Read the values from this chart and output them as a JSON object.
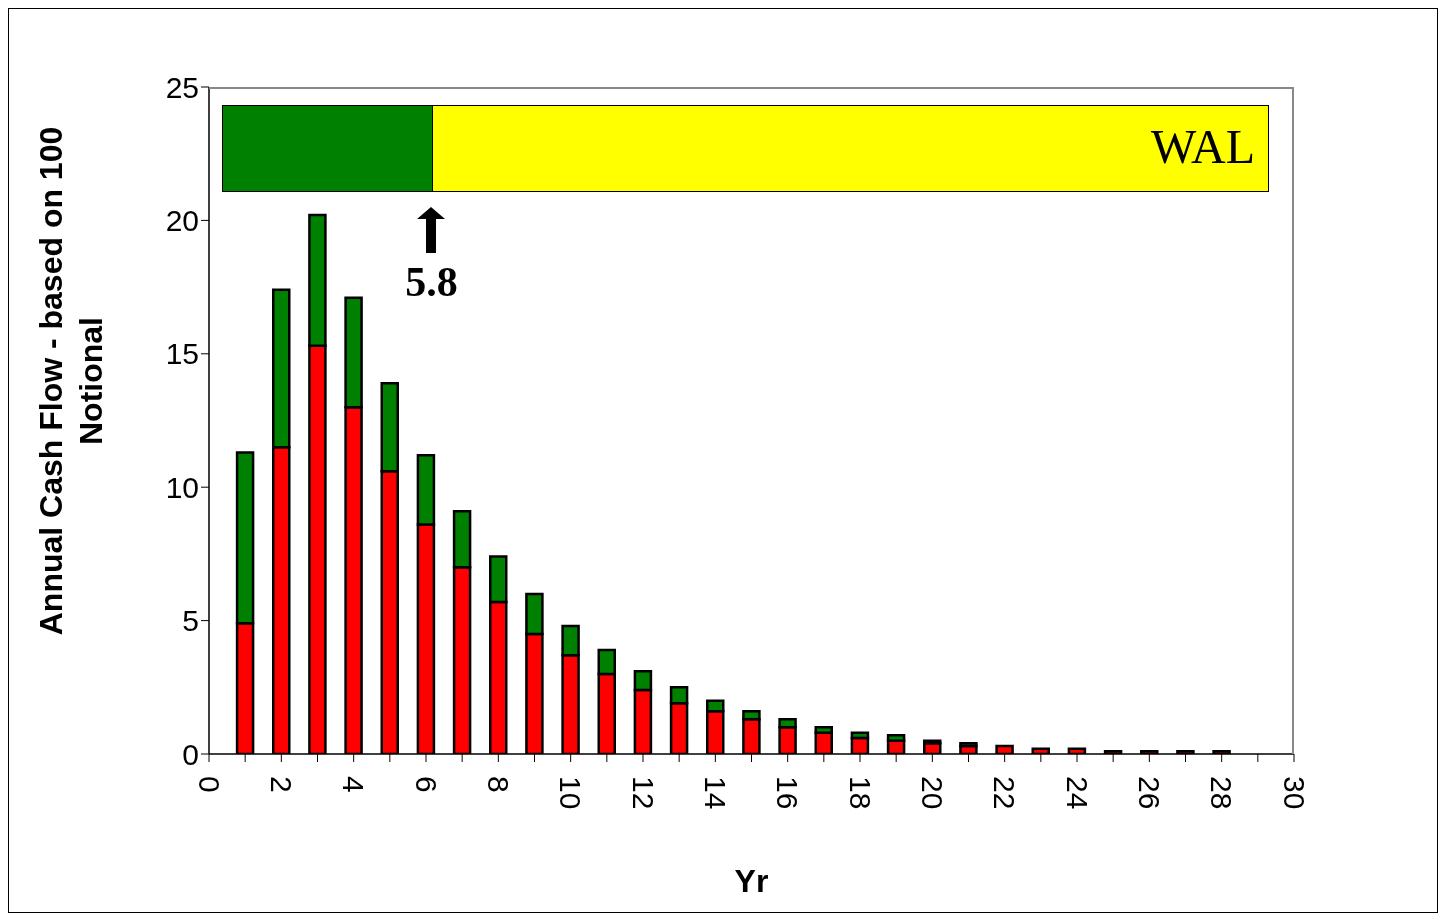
{
  "chart_data": {
    "type": "bar",
    "xlabel": "Yr",
    "ylabel": "Annual Cash Flow - based on 100 Notional",
    "stacked": true,
    "x": [
      1,
      2,
      3,
      4,
      5,
      6,
      7,
      8,
      9,
      10,
      11,
      12,
      13,
      14,
      15,
      16,
      17,
      18,
      19,
      20,
      21,
      22,
      23,
      24,
      25,
      26,
      27,
      28
    ],
    "series": [
      {
        "color": "#ff0000",
        "values": [
          4.9,
          11.5,
          15.3,
          13.0,
          10.6,
          8.6,
          7.0,
          5.7,
          4.5,
          3.7,
          3.0,
          2.4,
          1.9,
          1.6,
          1.3,
          1.0,
          0.8,
          0.6,
          0.5,
          0.4,
          0.3,
          0.3,
          0.2,
          0.2,
          0.1,
          0.1,
          0.1,
          0.1
        ]
      },
      {
        "color": "#008000",
        "values": [
          6.4,
          5.9,
          4.9,
          4.1,
          3.3,
          2.6,
          2.1,
          1.7,
          1.5,
          1.1,
          0.9,
          0.7,
          0.6,
          0.4,
          0.3,
          0.3,
          0.2,
          0.2,
          0.2,
          0.1,
          0.1,
          0,
          0,
          0,
          0,
          0,
          0,
          0
        ]
      }
    ],
    "xlim": [
      0,
      30
    ],
    "xticks": [
      0,
      {
        "value": 1,
        "label": null
      },
      2,
      {
        "value": 3,
        "label": null
      },
      4,
      {
        "value": 5,
        "label": null
      },
      6,
      {
        "value": 7,
        "label": null
      },
      8,
      {
        "value": 9,
        "label": null
      },
      10,
      {
        "value": 11,
        "label": null
      },
      12,
      {
        "value": 13,
        "label": null
      },
      14,
      {
        "value": 15,
        "label": null
      },
      16,
      {
        "value": 17,
        "label": null
      },
      18,
      {
        "value": 19,
        "label": null
      },
      20,
      {
        "value": 21,
        "label": null
      },
      22,
      {
        "value": 23,
        "label": null
      },
      24,
      {
        "value": 25,
        "label": null
      },
      26,
      {
        "value": 27,
        "label": null
      },
      28,
      {
        "value": 29,
        "label": null
      },
      30
    ],
    "ylim": [
      0,
      25
    ],
    "yticks": [
      0,
      5,
      10,
      15,
      20,
      25
    ],
    "annotations": [
      "WAL",
      "5.8"
    ],
    "grid": false,
    "legend": false
  }
}
